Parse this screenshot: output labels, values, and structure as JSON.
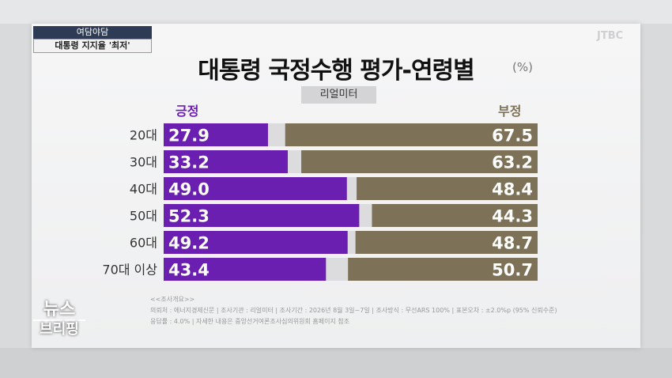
{
  "corner_tag": {
    "program": "여담야담",
    "headline": "대통령 지지율 '최저'"
  },
  "title": "대통령 국정수행 평가-연령별",
  "unit": "(%)",
  "source": "리얼미터",
  "logo": {
    "line1": "뉴스",
    "line2": "브리핑"
  },
  "watermark": "JTBC",
  "notes": {
    "header": "<<조사개요>>",
    "line1": "의뢰처 : 에너지경제신문 | 조사기관 : 리얼미터 | 조사기간 : 2026년 8월 3일~7일 | 조사방식 : 무선ARS 100% | 표본오차 : ±2.0%p (95% 신뢰수준)",
    "line2": "응답률 : 4.0% | 자세한 내용은 중앙선거여론조사심의위원회 홈페이지 참조"
  },
  "colors": {
    "positive": "#6a1fb0",
    "negative": "#7d7257",
    "neutral": "#dcdcde"
  },
  "chart_data": {
    "type": "bar",
    "stacked": true,
    "orientation": "horizontal",
    "title": "대통령 국정수행 평가-연령별",
    "categories": [
      "20대",
      "30대",
      "40대",
      "50대",
      "60대",
      "70대 이상"
    ],
    "series": [
      {
        "name": "긍정",
        "values": [
          27.9,
          33.2,
          49.0,
          52.3,
          49.2,
          43.4
        ],
        "color": "#6a1fb0"
      },
      {
        "name": "부정",
        "values": [
          67.5,
          63.2,
          48.4,
          44.3,
          48.7,
          50.7
        ],
        "color": "#7d7257"
      }
    ],
    "xlim": [
      0,
      100
    ],
    "grid": false
  }
}
